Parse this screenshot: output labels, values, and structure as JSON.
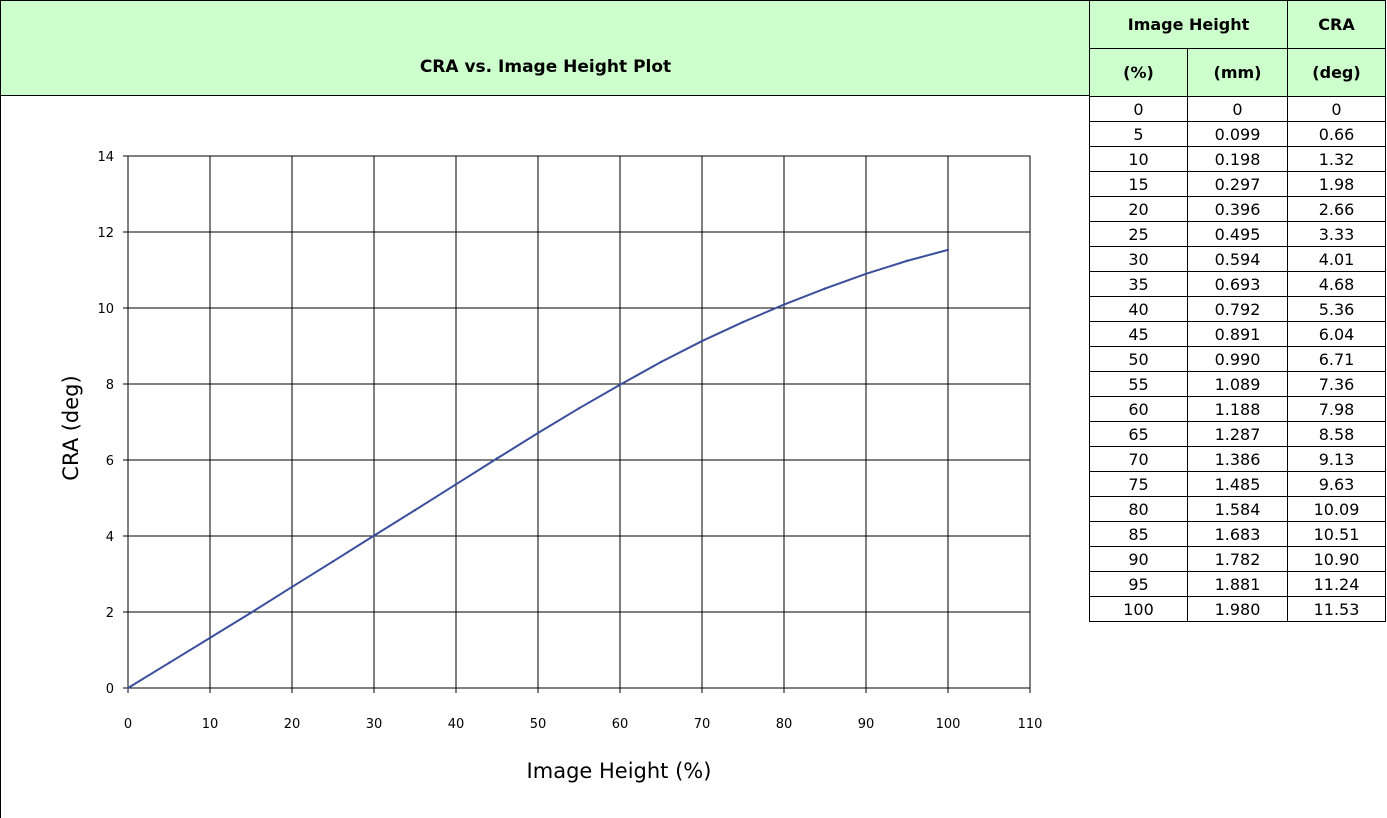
{
  "title": "CRA vs. Image Height Plot",
  "table": {
    "header_row1": [
      "Image Height",
      "CRA"
    ],
    "header_row2": [
      "(%)",
      "(mm)",
      "(deg)"
    ],
    "rows": [
      [
        "0",
        "0",
        "0"
      ],
      [
        "5",
        "0.099",
        "0.66"
      ],
      [
        "10",
        "0.198",
        "1.32"
      ],
      [
        "15",
        "0.297",
        "1.98"
      ],
      [
        "20",
        "0.396",
        "2.66"
      ],
      [
        "25",
        "0.495",
        "3.33"
      ],
      [
        "30",
        "0.594",
        "4.01"
      ],
      [
        "35",
        "0.693",
        "4.68"
      ],
      [
        "40",
        "0.792",
        "5.36"
      ],
      [
        "45",
        "0.891",
        "6.04"
      ],
      [
        "50",
        "0.990",
        "6.71"
      ],
      [
        "55",
        "1.089",
        "7.36"
      ],
      [
        "60",
        "1.188",
        "7.98"
      ],
      [
        "65",
        "1.287",
        "8.58"
      ],
      [
        "70",
        "1.386",
        "9.13"
      ],
      [
        "75",
        "1.485",
        "9.63"
      ],
      [
        "80",
        "1.584",
        "10.09"
      ],
      [
        "85",
        "1.683",
        "10.51"
      ],
      [
        "90",
        "1.782",
        "10.90"
      ],
      [
        "95",
        "1.881",
        "11.24"
      ],
      [
        "100",
        "1.980",
        "11.53"
      ]
    ]
  },
  "chart_data": {
    "type": "line",
    "title": "CRA vs. Image Height Plot",
    "xlabel": "Image Height (%)",
    "ylabel": "CRA (deg)",
    "xlim": [
      0,
      110
    ],
    "ylim": [
      0,
      14
    ],
    "xticks": [
      0,
      10,
      20,
      30,
      40,
      50,
      60,
      70,
      80,
      90,
      100,
      110
    ],
    "yticks": [
      0,
      2,
      4,
      6,
      8,
      10,
      12,
      14
    ],
    "grid": true,
    "line_color": "#3b4f9c",
    "series": [
      {
        "x": [
          0,
          5,
          10,
          15,
          20,
          25,
          30,
          35,
          40,
          45,
          50,
          55,
          60,
          65,
          70,
          75,
          80,
          85,
          90,
          95,
          100
        ],
        "y": [
          0,
          0.66,
          1.32,
          1.98,
          2.66,
          3.33,
          4.01,
          4.68,
          5.36,
          6.04,
          6.71,
          7.36,
          7.98,
          8.58,
          9.13,
          9.63,
          10.09,
          10.51,
          10.9,
          11.24,
          11.53
        ]
      }
    ]
  }
}
